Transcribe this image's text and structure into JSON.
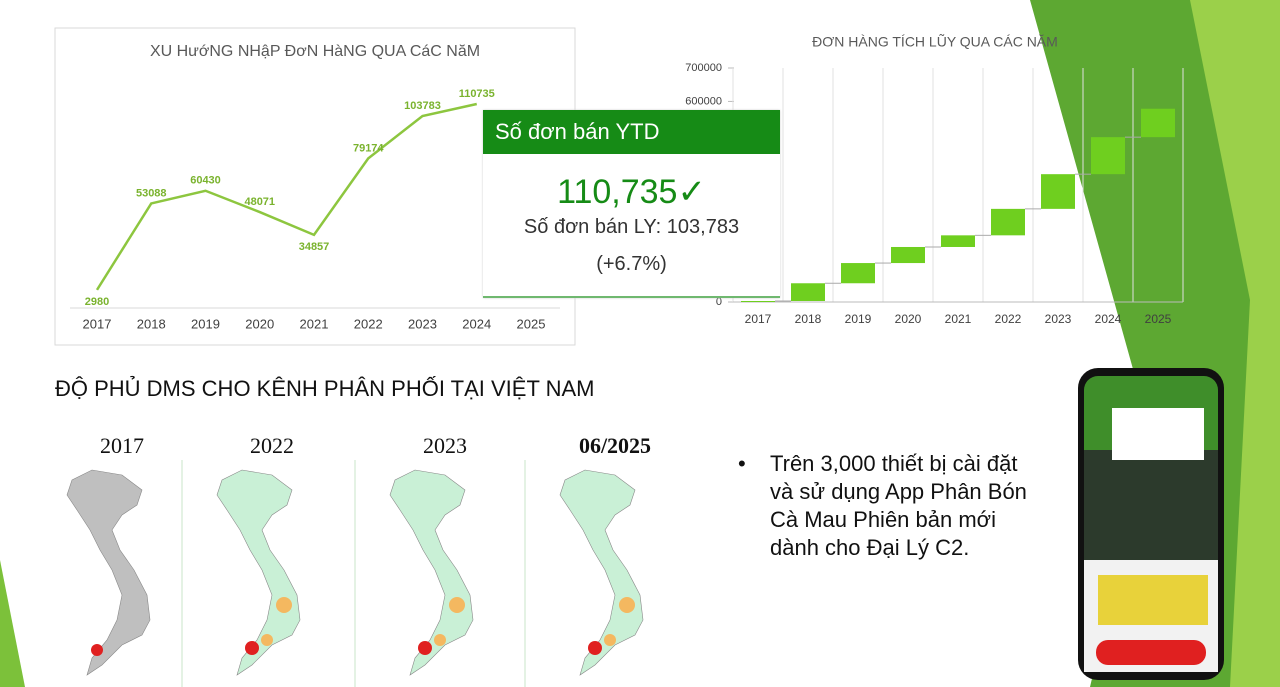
{
  "chart_data": [
    {
      "type": "line",
      "title": "XU HướNG NHậP ĐơN HàNG QUA CáC NăM",
      "categories": [
        "2017",
        "2018",
        "2019",
        "2020",
        "2021",
        "2022",
        "2023",
        "2024",
        "2025"
      ],
      "values": [
        2980,
        53088,
        60430,
        48071,
        34857,
        79174,
        103783,
        110735,
        null
      ],
      "color": "#8dc63f",
      "ylim": [
        0,
        120000
      ]
    },
    {
      "type": "waterfall",
      "title": "ĐƠN HÀNG TÍCH LŨY QUA CÁC NĂM",
      "categories": [
        "2017",
        "2018",
        "2019",
        "2020",
        "2021",
        "2022",
        "2023",
        "2024",
        "2025"
      ],
      "values": [
        2980,
        53088,
        60430,
        48071,
        34857,
        79174,
        103783,
        110735,
        85000
      ],
      "color": "#6fcf1f",
      "ylim": [
        0,
        700000
      ],
      "yticks": [
        0,
        600000,
        700000
      ]
    }
  ],
  "kpi_card": {
    "header": "Số đơn bán YTD",
    "value": "110,735✓",
    "last_year": "Số đơn bán LY: 103,783",
    "change": "(+6.7%)"
  },
  "coverage": {
    "title": "ĐỘ PHỦ DMS CHO KÊNH PHÂN PHỐI TẠI VIỆT NAM",
    "maps": [
      "2017",
      "2022",
      "2023",
      "06/2025"
    ]
  },
  "bullet": "Trên 3,000 thiết bị cài đặt và sử dụng App Phân Bón Cà Mau Phiên bản mới dành cho Đại Lý C2."
}
